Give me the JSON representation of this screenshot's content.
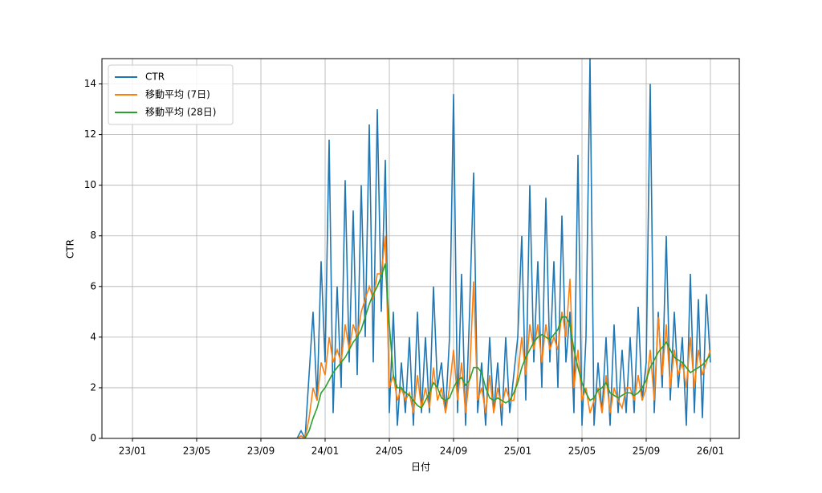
{
  "chart_data": {
    "type": "line",
    "x_label": "日付",
    "y_label": "CTR",
    "x": [
      0,
      10.25,
      10.5,
      10.75,
      11,
      11.25,
      11.5,
      11.75,
      12,
      12.25,
      12.5,
      12.75,
      13,
      13.25,
      13.5,
      13.75,
      14,
      14.25,
      14.5,
      14.75,
      15,
      15.25,
      15.5,
      15.75,
      16,
      16.25,
      16.5,
      16.75,
      17,
      17.25,
      17.5,
      17.75,
      18,
      18.25,
      18.5,
      18.75,
      19,
      19.25,
      19.5,
      19.75,
      20,
      20.25,
      20.5,
      20.75,
      21,
      21.25,
      21.5,
      21.75,
      22,
      22.25,
      22.5,
      22.75,
      23,
      23.25,
      23.5,
      23.75,
      24,
      24.25,
      24.5,
      24.75,
      25,
      25.25,
      25.5,
      25.75,
      26,
      26.25,
      26.5,
      26.75,
      27,
      27.25,
      27.5,
      27.75,
      28,
      28.25,
      28.5,
      28.75,
      29,
      29.25,
      29.5,
      29.75,
      30,
      30.25,
      30.5,
      30.75,
      31,
      31.25,
      31.5,
      31.75,
      32,
      32.25,
      32.5,
      32.75,
      33,
      33.25,
      33.5,
      33.75,
      34,
      34.25,
      34.5,
      34.75,
      35,
      35.25,
      35.5,
      35.75,
      36
    ],
    "series": [
      {
        "name": "CTR",
        "color": "#1f77b4",
        "values": [
          0,
          0,
          0.3,
          0,
          2.5,
          5,
          1.5,
          7,
          3,
          11.8,
          1,
          6,
          2,
          10.2,
          3,
          9,
          2.5,
          10,
          4,
          12.4,
          3,
          13,
          5,
          11,
          1,
          5,
          0.5,
          3,
          1,
          4,
          0.5,
          5,
          1,
          4,
          1,
          6,
          2,
          3,
          1,
          4,
          13.6,
          1,
          6.5,
          0.5,
          5,
          10.5,
          1,
          3,
          0.5,
          4,
          1,
          3,
          0.5,
          4,
          1,
          2.5,
          4,
          8,
          1.5,
          10,
          3,
          7,
          2,
          9.5,
          3,
          7,
          2,
          8.8,
          3,
          5,
          1,
          11.2,
          0.5,
          4,
          15,
          0.5,
          3,
          1,
          4,
          0.5,
          4.5,
          1,
          3.5,
          1,
          4,
          1,
          5.2,
          1.5,
          3,
          14,
          1,
          5,
          2,
          8,
          1.5,
          5,
          2,
          4,
          0.5,
          6.5,
          1,
          5.5,
          0.8,
          5.7,
          3
        ]
      },
      {
        "name": "移動平均 (7日)",
        "color": "#ff7f0e",
        "values": [
          0,
          0,
          0.1,
          0,
          0.8,
          2,
          1.5,
          3,
          2.5,
          4,
          3,
          3.5,
          3,
          4.5,
          3.5,
          4.5,
          4,
          5,
          5.5,
          6,
          5.5,
          6.5,
          6.5,
          8,
          2,
          2.5,
          1.5,
          2,
          1.5,
          1.8,
          1,
          2.5,
          1.2,
          2,
          1.2,
          2.8,
          1.5,
          2,
          1,
          2,
          3.5,
          1.5,
          3,
          1,
          2.5,
          6.2,
          1.5,
          2,
          1,
          2.5,
          1,
          2,
          1.2,
          2,
          1.5,
          1.5,
          2.5,
          4,
          2.5,
          4.5,
          3.5,
          4.5,
          3,
          4.5,
          3.5,
          4,
          3.5,
          5,
          4,
          6.3,
          2,
          3.5,
          1.5,
          2,
          1,
          1.5,
          2,
          1,
          2.5,
          1,
          2,
          1.5,
          1.2,
          2,
          2,
          1.5,
          2.5,
          1.5,
          2,
          3.5,
          1.5,
          4.8,
          2.5,
          4.5,
          2,
          3.5,
          2.5,
          3,
          2,
          4,
          2,
          3.5,
          2.5,
          3,
          3.5
        ]
      },
      {
        "name": "移動平均 (28日)",
        "color": "#2ca02c",
        "values": [
          0,
          0,
          0,
          0,
          0.3,
          0.8,
          1.2,
          1.8,
          2,
          2.3,
          2.6,
          2.8,
          3,
          3.2,
          3.5,
          3.8,
          4,
          4.3,
          4.8,
          5.3,
          5.7,
          6,
          6.4,
          6.9,
          4.5,
          2.5,
          2,
          2,
          1.8,
          1.7,
          1.5,
          1.3,
          1.2,
          1.5,
          1.8,
          2.2,
          2,
          1.6,
          1.5,
          1.6,
          2,
          2.3,
          2.4,
          2.1,
          2.3,
          2.8,
          2.8,
          2.6,
          2,
          1.6,
          1.5,
          1.6,
          1.5,
          1.4,
          1.5,
          1.8,
          2.2,
          2.8,
          3.2,
          3.5,
          3.8,
          4,
          4.1,
          4,
          3.9,
          4.1,
          4.3,
          4.8,
          4.8,
          4.5,
          3.5,
          2.8,
          2.2,
          1.8,
          1.5,
          1.6,
          1.9,
          2,
          2.2,
          1.8,
          1.7,
          1.6,
          1.7,
          1.8,
          1.8,
          1.7,
          1.8,
          2,
          2.3,
          2.8,
          3.1,
          3.4,
          3.6,
          3.8,
          3.5,
          3.2,
          3.1,
          3,
          2.8,
          2.6,
          2.7,
          2.8,
          2.9,
          3.1,
          3.3
        ]
      }
    ],
    "xlim": [
      -1.9,
      37.8
    ],
    "xticks": [
      {
        "value": 0,
        "label": "23/01"
      },
      {
        "value": 4,
        "label": "23/05"
      },
      {
        "value": 8,
        "label": "23/09"
      },
      {
        "value": 12,
        "label": "24/01"
      },
      {
        "value": 16,
        "label": "24/05"
      },
      {
        "value": 20,
        "label": "24/09"
      },
      {
        "value": 24,
        "label": "25/01"
      },
      {
        "value": 28,
        "label": "25/05"
      },
      {
        "value": 32,
        "label": "25/09"
      },
      {
        "value": 36,
        "label": "26/01"
      }
    ],
    "ylim": [
      0,
      15
    ],
    "yticks": [
      0,
      2,
      4,
      6,
      8,
      10,
      12,
      14
    ],
    "grid": true,
    "legend": "upper left"
  }
}
